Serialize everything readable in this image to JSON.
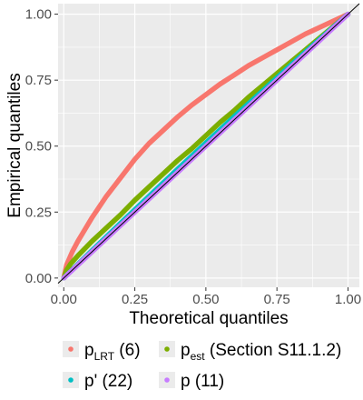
{
  "chart_data": {
    "type": "line",
    "xlabel": "Theoretical quantiles",
    "ylabel": "Empirical quantiles",
    "xlim": [
      -0.02,
      1.04
    ],
    "ylim": [
      -0.035,
      1.04
    ],
    "x_ticks": [
      "0.00",
      "0.25",
      "0.50",
      "0.75",
      "1.00"
    ],
    "y_ticks": [
      "0.00",
      "0.25",
      "0.50",
      "0.75",
      "1.00"
    ],
    "grid": true,
    "background": "#EBEBEB",
    "reference_line": {
      "from": [
        0,
        0
      ],
      "to": [
        1,
        1
      ],
      "color": "#000000"
    },
    "legend_position": "bottom",
    "series": [
      {
        "key": "lrt",
        "name_main": "p",
        "name_sub": "LRT",
        "name_suffix": " (6)",
        "color": "#F8766D",
        "x": [
          0,
          0.01,
          0.03,
          0.05,
          0.1,
          0.15,
          0.2,
          0.25,
          0.3,
          0.35,
          0.4,
          0.45,
          0.5,
          0.55,
          0.6,
          0.65,
          0.7,
          0.75,
          0.8,
          0.85,
          0.9,
          0.95,
          1.0
        ],
        "y": [
          0,
          0.05,
          0.1,
          0.14,
          0.23,
          0.31,
          0.38,
          0.45,
          0.51,
          0.56,
          0.61,
          0.655,
          0.695,
          0.735,
          0.77,
          0.805,
          0.835,
          0.865,
          0.895,
          0.925,
          0.95,
          0.975,
          1.0
        ]
      },
      {
        "key": "est",
        "name_main": "p",
        "name_sub": "est",
        "name_suffix": " (Section S11.1.2)",
        "color": "#7CAE00",
        "x": [
          0,
          0.01,
          0.025,
          0.05,
          0.1,
          0.15,
          0.2,
          0.25,
          0.3,
          0.35,
          0.4,
          0.45,
          0.5,
          0.55,
          0.6,
          0.65,
          0.7,
          0.75,
          0.8,
          0.85,
          0.9,
          0.95,
          1.0
        ],
        "y": [
          0,
          0.03,
          0.055,
          0.085,
          0.14,
          0.19,
          0.24,
          0.295,
          0.345,
          0.395,
          0.445,
          0.49,
          0.54,
          0.59,
          0.635,
          0.685,
          0.73,
          0.775,
          0.82,
          0.865,
          0.91,
          0.955,
          1.0
        ]
      },
      {
        "key": "pprime",
        "name_main": "p' (22)",
        "name_sub": "",
        "name_suffix": "",
        "color": "#00BFC4",
        "x": [
          0,
          0.1,
          0.2,
          0.3,
          0.4,
          0.5,
          0.6,
          0.7,
          0.8,
          0.9,
          1.0
        ],
        "y": [
          0,
          0.105,
          0.208,
          0.31,
          0.412,
          0.512,
          0.612,
          0.71,
          0.808,
          0.905,
          1.0
        ]
      },
      {
        "key": "p",
        "name_main": "p (11)",
        "name_sub": "",
        "name_suffix": "",
        "color": "#C77CFF",
        "x": [
          0,
          0.1,
          0.2,
          0.3,
          0.4,
          0.5,
          0.6,
          0.7,
          0.8,
          0.9,
          1.0
        ],
        "y": [
          0,
          0.1,
          0.2,
          0.3,
          0.4,
          0.5,
          0.6,
          0.7,
          0.8,
          0.9,
          1.0
        ]
      }
    ]
  }
}
